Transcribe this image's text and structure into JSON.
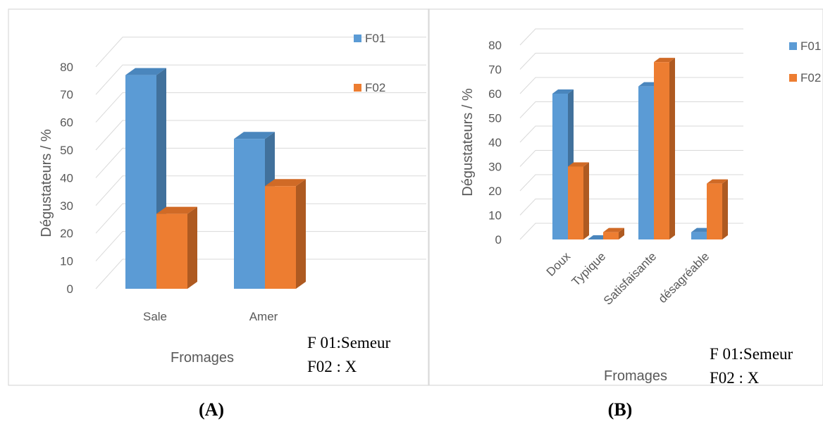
{
  "chart_data": [
    {
      "type": "bar",
      "panel_label": "(A)",
      "categories": [
        "Sale",
        "Amer"
      ],
      "series": [
        {
          "name": "F01",
          "values": [
            77,
            54
          ]
        },
        {
          "name": "F02",
          "values": [
            27,
            37
          ]
        }
      ],
      "xlabel": "Fromages",
      "ylabel": "Dégustateurs / %",
      "ylim": [
        0,
        80
      ],
      "yticks": [
        0,
        10,
        20,
        30,
        40,
        50,
        60,
        70,
        80
      ],
      "grid": true,
      "legend": "top-right",
      "annotation": [
        "F 01:Semeur",
        "F02 : X"
      ]
    },
    {
      "type": "bar",
      "panel_label": "(B)",
      "categories": [
        "Doux",
        "Typique",
        "Satisfaisante",
        "désagréable"
      ],
      "series": [
        {
          "name": "F01",
          "values": [
            60,
            0,
            63,
            3
          ]
        },
        {
          "name": "F02",
          "values": [
            30,
            3,
            73,
            23
          ]
        }
      ],
      "xlabel": "Fromages",
      "ylabel": "Dégustateurs / %",
      "ylim": [
        0,
        80
      ],
      "yticks": [
        0,
        10,
        20,
        30,
        40,
        50,
        60,
        70,
        80
      ],
      "grid": true,
      "legend": "top-right",
      "annotation": [
        "F 01:Semeur",
        "F02 : X"
      ]
    }
  ],
  "colors": {
    "F01_front": "#5b9bd5",
    "F01_side": "#41719c",
    "F01_top": "#4a86bd",
    "F02_front": "#ed7d31",
    "F02_side": "#ae5a21",
    "F02_top": "#d06a26"
  }
}
